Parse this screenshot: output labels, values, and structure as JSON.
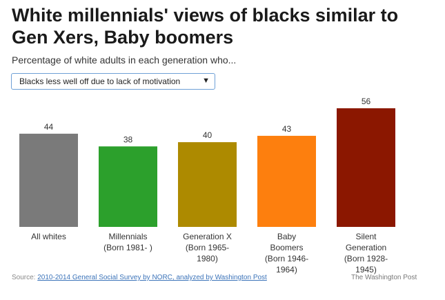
{
  "title": "White millennials' views of blacks similar to Gen Xers, Baby boomers",
  "subtitle": "Percentage of white adults in each generation who...",
  "dropdown": {
    "selected": "Blacks less well off due to lack of motivation",
    "caret_icon": "triangle-down-icon"
  },
  "source": {
    "prefix": "Source: ",
    "link_text": "2010-2014 General Social Survey by NORC, analyzed by Washington Post"
  },
  "credit": "The Washington Post",
  "chart_data": {
    "type": "bar",
    "categories": [
      "All whites",
      "Millennials (Born 1981- )",
      "Generation X (Born 1965-1980)",
      "Baby Boomers (Born 1946-1964)",
      "Silent Generation (Born 1928-1945)"
    ],
    "category_lines": [
      [
        "All whites"
      ],
      [
        "Millennials",
        "(Born 1981- )"
      ],
      [
        "Generation X",
        "(Born 1965-",
        "1980)"
      ],
      [
        "Baby",
        "Boomers",
        "(Born 1946-",
        "1964)"
      ],
      [
        "Silent",
        "Generation",
        "(Born 1928-",
        "1945)"
      ]
    ],
    "values": [
      44,
      38,
      40,
      43,
      56
    ],
    "value_labels": [
      "44",
      "38",
      "40",
      "43",
      "56"
    ],
    "colors": [
      "#7a7a7a",
      "#2ca02c",
      "#ad8a00",
      "#fd7f0e",
      "#8b1700"
    ],
    "ylim": [
      0,
      56
    ],
    "legend": "none",
    "grid": false
  }
}
